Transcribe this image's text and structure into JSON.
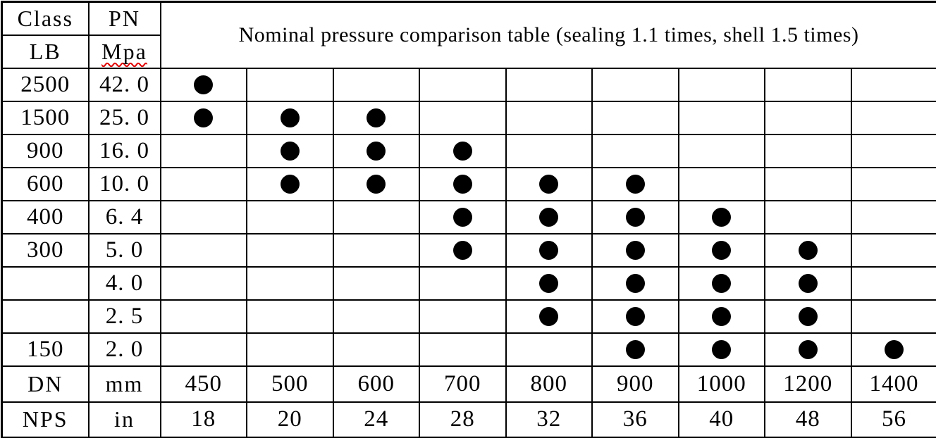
{
  "title": "Nominal pressure comparison table (sealing 1.1 times, shell 1.5 times)",
  "colors": {
    "background": "#ffffff",
    "border": "#000000",
    "text": "#000000",
    "dot": "#000000",
    "spellcheck_underline": "#e00000"
  },
  "table": {
    "class_label": "Class",
    "class_unit": "LB",
    "pn_label": "PN",
    "pn_unit": "Mpa",
    "dn_label": "DN",
    "dn_unit": "mm",
    "nps_label": "NPS",
    "nps_unit": "in",
    "dn_values": [
      "450",
      "500",
      "600",
      "700",
      "800",
      "900",
      "1000",
      "1200",
      "1400"
    ],
    "nps_values": [
      "18",
      "20",
      "24",
      "28",
      "32",
      "36",
      "40",
      "48",
      "56"
    ],
    "rows": [
      {
        "class_lb": "2500",
        "pn_mpa": "42. 0",
        "dots": [
          "450"
        ]
      },
      {
        "class_lb": "1500",
        "pn_mpa": "25. 0",
        "dots": [
          "450",
          "500",
          "600"
        ]
      },
      {
        "class_lb": "900",
        "pn_mpa": "16. 0",
        "dots": [
          "500",
          "600",
          "700"
        ]
      },
      {
        "class_lb": "600",
        "pn_mpa": "10. 0",
        "dots": [
          "500",
          "600",
          "700",
          "800",
          "900"
        ]
      },
      {
        "class_lb": "400",
        "pn_mpa": "6. 4",
        "dots": [
          "700",
          "800",
          "900",
          "1000"
        ]
      },
      {
        "class_lb": "300",
        "pn_mpa": "5. 0",
        "dots": [
          "700",
          "800",
          "900",
          "1000",
          "1200"
        ]
      },
      {
        "class_lb": "",
        "pn_mpa": "4. 0",
        "dots": [
          "800",
          "900",
          "1000",
          "1200"
        ]
      },
      {
        "class_lb": "",
        "pn_mpa": "2. 5",
        "dots": [
          "800",
          "900",
          "1000",
          "1200"
        ]
      },
      {
        "class_lb": "150",
        "pn_mpa": "2. 0",
        "dots": [
          "900",
          "1000",
          "1200",
          "1400"
        ]
      }
    ]
  },
  "chart_data": {
    "type": "table",
    "title": "Nominal pressure comparison table (sealing 1.1 times, shell 1.5 times)",
    "row_headers": [
      "Class LB",
      "PN Mpa"
    ],
    "column_headers": [
      "DN mm",
      "NPS in"
    ],
    "columns_dn_mm": [
      450,
      500,
      600,
      700,
      800,
      900,
      1000,
      1200,
      1400
    ],
    "columns_nps_in": [
      18,
      20,
      24,
      28,
      32,
      36,
      40,
      48,
      56
    ],
    "mark": "filled-circle",
    "rows": [
      {
        "class_lb": 2500,
        "pn_mpa": 42.0,
        "available_dn": [
          450
        ]
      },
      {
        "class_lb": 1500,
        "pn_mpa": 25.0,
        "available_dn": [
          450,
          500,
          600
        ]
      },
      {
        "class_lb": 900,
        "pn_mpa": 16.0,
        "available_dn": [
          500,
          600,
          700
        ]
      },
      {
        "class_lb": 600,
        "pn_mpa": 10.0,
        "available_dn": [
          500,
          600,
          700,
          800,
          900
        ]
      },
      {
        "class_lb": 400,
        "pn_mpa": 6.4,
        "available_dn": [
          700,
          800,
          900,
          1000
        ]
      },
      {
        "class_lb": 300,
        "pn_mpa": 5.0,
        "available_dn": [
          700,
          800,
          900,
          1000,
          1200
        ]
      },
      {
        "class_lb": null,
        "pn_mpa": 4.0,
        "available_dn": [
          800,
          900,
          1000,
          1200
        ]
      },
      {
        "class_lb": null,
        "pn_mpa": 2.5,
        "available_dn": [
          800,
          900,
          1000,
          1200
        ]
      },
      {
        "class_lb": 150,
        "pn_mpa": 2.0,
        "available_dn": [
          900,
          1000,
          1200,
          1400
        ]
      }
    ]
  }
}
